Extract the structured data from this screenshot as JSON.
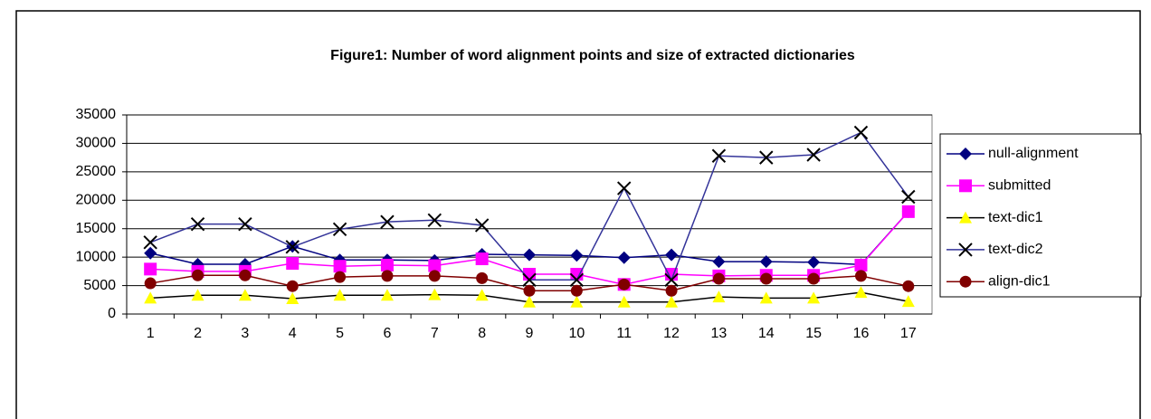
{
  "chart_data": {
    "type": "line",
    "title": "Figure1:   Number of word alignment points and size of extracted dictionaries",
    "categories": [
      "1",
      "2",
      "3",
      "4",
      "5",
      "6",
      "7",
      "8",
      "9",
      "10",
      "11",
      "12",
      "13",
      "14",
      "15",
      "16",
      "17"
    ],
    "ylim": [
      0,
      35000
    ],
    "yticks": [
      0,
      5000,
      10000,
      15000,
      20000,
      25000,
      30000,
      35000
    ],
    "grid": true,
    "legend": "right",
    "series": [
      {
        "name": "null-alignment",
        "color": "#000080",
        "line_color": "#000080",
        "marker": "diamond",
        "values": [
          10700,
          8750,
          8750,
          11900,
          9500,
          9500,
          9400,
          10500,
          10400,
          10300,
          9900,
          10400,
          9200,
          9200,
          9100,
          8700,
          18000
        ]
      },
      {
        "name": "submitted",
        "color": "#ff00ff",
        "line_color": "#ff00ff",
        "marker": "square",
        "values": [
          7900,
          7500,
          7500,
          8900,
          8400,
          8600,
          8500,
          9700,
          7000,
          7000,
          5200,
          7000,
          6700,
          6800,
          6800,
          8600,
          18000
        ]
      },
      {
        "name": "text-dic1",
        "color": "#ffff00",
        "line_color": "#000000",
        "marker": "triangle",
        "values": [
          2800,
          3300,
          3300,
          2700,
          3300,
          3300,
          3400,
          3300,
          2100,
          2100,
          2100,
          2100,
          3000,
          2800,
          2800,
          3800,
          2200
        ]
      },
      {
        "name": "text-dic2",
        "color": "#000000",
        "line_color": "#333399",
        "marker": "x",
        "values": [
          12600,
          15800,
          15800,
          11800,
          14900,
          16200,
          16500,
          15600,
          6000,
          6000,
          22100,
          6000,
          27800,
          27500,
          28000,
          31900,
          20600
        ]
      },
      {
        "name": "align-dic1",
        "color": "#800000",
        "line_color": "#800000",
        "marker": "circle",
        "values": [
          5400,
          6800,
          6800,
          4900,
          6500,
          6700,
          6700,
          6300,
          4100,
          4100,
          5200,
          4100,
          6200,
          6200,
          6200,
          6700,
          4900
        ]
      }
    ]
  }
}
